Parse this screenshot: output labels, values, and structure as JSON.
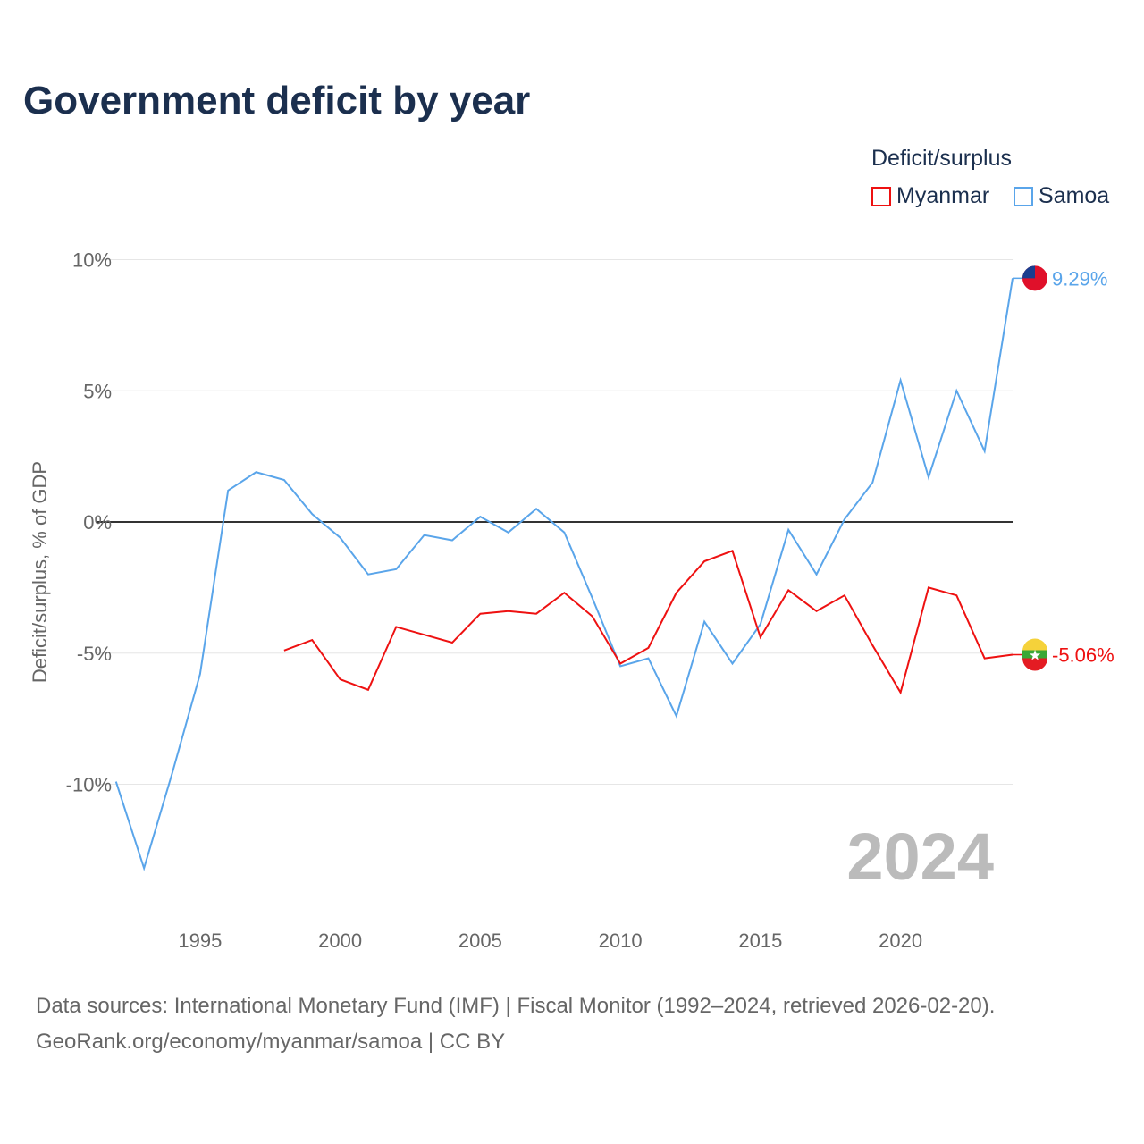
{
  "title": "Government deficit by year",
  "legend": {
    "title": "Deficit/surplus",
    "items": [
      {
        "name": "Myanmar",
        "color": "#ee1111"
      },
      {
        "name": "Samoa",
        "color": "#5aa5ea"
      }
    ]
  },
  "source_line1": "Data sources: International Monetary Fund (IMF) | Fiscal Monitor (1992–2024, retrieved 2026-02-20).",
  "source_line2": "GeoRank.org/economy/myanmar/samoa | CC BY",
  "chart_data": {
    "type": "line",
    "title": "Government deficit by year",
    "ylabel": "Deficit/surplus, % of GDP",
    "xlabel": "",
    "xlim": [
      1992,
      2024
    ],
    "ylim": [
      -14,
      11
    ],
    "xticks": [
      1995,
      2000,
      2005,
      2010,
      2015,
      2020
    ],
    "yticks": [
      {
        "v": 10,
        "label": "10%"
      },
      {
        "v": 5,
        "label": "5%"
      },
      {
        "v": 0,
        "label": "0%"
      },
      {
        "v": -5,
        "label": "-5%"
      },
      {
        "v": -10,
        "label": "-10%"
      }
    ],
    "year_watermark": "2024",
    "series": [
      {
        "name": "Samoa",
        "color": "#5aa5ea",
        "end_label": "9.29%",
        "x": [
          1992,
          1993,
          1994,
          1995,
          1996,
          1997,
          1998,
          1999,
          2000,
          2001,
          2002,
          2003,
          2004,
          2005,
          2006,
          2007,
          2008,
          2009,
          2010,
          2011,
          2012,
          2013,
          2014,
          2015,
          2016,
          2017,
          2018,
          2019,
          2020,
          2021,
          2022,
          2023,
          2024
        ],
        "values": [
          -9.9,
          -13.2,
          -9.6,
          -5.8,
          1.2,
          1.9,
          1.6,
          0.3,
          -0.6,
          -2.0,
          -1.8,
          -0.5,
          -0.7,
          0.2,
          -0.4,
          0.5,
          -0.4,
          -2.9,
          -5.5,
          -5.2,
          -7.4,
          -3.8,
          -5.4,
          -3.9,
          -0.3,
          -2.0,
          0.1,
          1.5,
          5.4,
          1.7,
          5.0,
          2.7,
          9.29
        ]
      },
      {
        "name": "Myanmar",
        "color": "#ee1111",
        "end_label": "-5.06%",
        "x": [
          1998,
          1999,
          2000,
          2001,
          2002,
          2003,
          2004,
          2005,
          2006,
          2007,
          2008,
          2009,
          2010,
          2011,
          2012,
          2013,
          2014,
          2015,
          2016,
          2017,
          2018,
          2019,
          2020,
          2021,
          2022,
          2023,
          2024
        ],
        "values": [
          -4.9,
          -4.5,
          -6.0,
          -6.4,
          -4.0,
          -4.3,
          -4.6,
          -3.5,
          -3.4,
          -3.5,
          -2.7,
          -3.6,
          -5.4,
          -4.8,
          -2.7,
          -1.5,
          -1.1,
          -4.4,
          -2.6,
          -3.4,
          -2.8,
          -4.7,
          -6.5,
          -2.5,
          -2.8,
          -5.2,
          -5.06
        ]
      }
    ]
  }
}
